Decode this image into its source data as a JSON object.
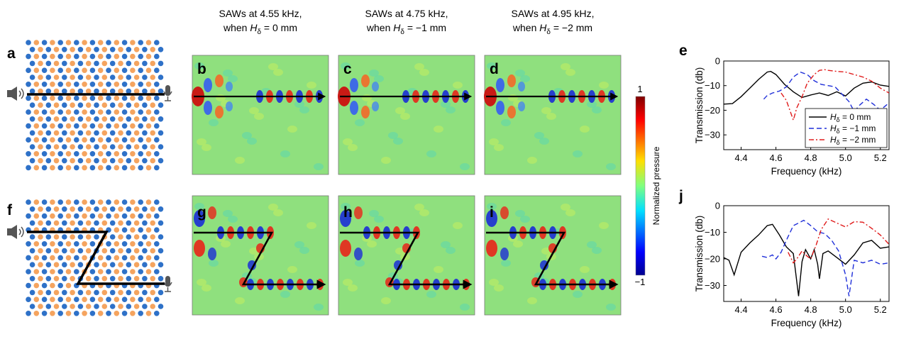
{
  "panel_labels": {
    "a": "a",
    "b": "b",
    "c": "c",
    "d": "d",
    "e": "e",
    "f": "f",
    "g": "g",
    "h": "h",
    "i": "i",
    "j": "j"
  },
  "captions": [
    {
      "line1": "SAWs at 4.55 kHz,",
      "line2_prefix": "when ",
      "H": "H",
      "sub": "δ",
      "line2_suffix": " = 0 mm"
    },
    {
      "line1": "SAWs at 4.75 kHz,",
      "line2_prefix": "when ",
      "H": "H",
      "sub": "δ",
      "line2_suffix": " = −1 mm"
    },
    {
      "line1": "SAWs at 4.95 kHz,",
      "line2_prefix": "when ",
      "H": "H",
      "sub": "δ",
      "line2_suffix": " = −2 mm"
    }
  ],
  "colorbar": {
    "max_label": "1",
    "min_label": "−1",
    "label": "Normalized pressure"
  },
  "lattice_colors": {
    "blue": "#2E71C8",
    "orange": "#F5A45F"
  },
  "chart_data": [
    {
      "type": "line",
      "panel": "e",
      "xlabel": "Frequency (kHz)",
      "ylabel": "Transmission (db)",
      "xlim": [
        4.3,
        5.25
      ],
      "ylim": [
        -36,
        0
      ],
      "xticks": [
        "4.4",
        "4.6",
        "4.8",
        "5.0",
        "5.2"
      ],
      "yticks": [
        "0",
        "−10",
        "−20",
        "−30"
      ],
      "legend_position": "bottom-right",
      "series": [
        {
          "name_prefix": "H",
          "name_sub": "δ",
          "name_suffix": " = 0 mm",
          "color": "#000000",
          "dash": "none",
          "x": [
            4.3,
            4.35,
            4.4,
            4.45,
            4.5,
            4.55,
            4.57,
            4.6,
            4.65,
            4.7,
            4.75,
            4.8,
            4.85,
            4.9,
            4.95,
            5.0,
            5.05,
            5.1,
            5.15,
            5.2,
            5.25
          ],
          "y": [
            -17.5,
            -17.3,
            -14.5,
            -11,
            -7.5,
            -4.5,
            -4.2,
            -5.5,
            -9.5,
            -12.5,
            -14.8,
            -13.8,
            -13,
            -14,
            -12.5,
            -14.2,
            -11,
            -9,
            -8.5,
            -9.8,
            -10.3
          ]
        },
        {
          "name_prefix": "H",
          "name_sub": "δ",
          "name_suffix": " = −1 mm",
          "color": "#1F2FD9",
          "dash": "7,4",
          "x": [
            4.53,
            4.55,
            4.58,
            4.62,
            4.66,
            4.7,
            4.74,
            4.78,
            4.82,
            4.86,
            4.9,
            4.94,
            4.98,
            5.02,
            5.05,
            5.08,
            5.12,
            5.16,
            5.2,
            5.25
          ],
          "y": [
            -15.5,
            -14,
            -13,
            -12.2,
            -10.5,
            -6.5,
            -4.5,
            -5.5,
            -8,
            -9.5,
            -10,
            -10.5,
            -13.5,
            -16.5,
            -20.5,
            -18,
            -15.5,
            -17.5,
            -20,
            -17
          ]
        },
        {
          "name_prefix": "H",
          "name_sub": "δ",
          "name_suffix": " = −2 mm",
          "color": "#E01B1B",
          "dash": "7,3,2,3",
          "x": [
            4.63,
            4.66,
            4.7,
            4.72,
            4.75,
            4.78,
            4.82,
            4.85,
            4.88,
            4.9,
            4.95,
            5.0,
            5.05,
            5.1,
            5.15,
            5.2,
            5.25
          ],
          "y": [
            -13,
            -16,
            -24,
            -19,
            -14.5,
            -9,
            -5.5,
            -3.8,
            -3.5,
            -3.8,
            -4.2,
            -4.5,
            -5.5,
            -6.5,
            -8.2,
            -11,
            -13
          ]
        }
      ]
    },
    {
      "type": "line",
      "panel": "j",
      "xlabel": "Frequency (kHz)",
      "ylabel": "Transmission (db)",
      "xlim": [
        4.3,
        5.25
      ],
      "ylim": [
        -36,
        0
      ],
      "xticks": [
        "4.4",
        "4.6",
        "4.8",
        "5.0",
        "5.2"
      ],
      "yticks": [
        "0",
        "−10",
        "−20",
        "−30"
      ],
      "series": [
        {
          "name": "",
          "color": "#000000",
          "dash": "none",
          "x": [
            4.3,
            4.33,
            4.36,
            4.4,
            4.45,
            4.5,
            4.55,
            4.58,
            4.62,
            4.66,
            4.7,
            4.73,
            4.75,
            4.77,
            4.8,
            4.82,
            4.84,
            4.85,
            4.87,
            4.9,
            4.95,
            5.0,
            5.05,
            5.1,
            5.15,
            5.2,
            5.25
          ],
          "y": [
            -19.5,
            -20.5,
            -26,
            -17.5,
            -14,
            -11,
            -7.5,
            -7,
            -11,
            -15.5,
            -18,
            -34,
            -21,
            -16.5,
            -20,
            -16.5,
            -22,
            -27.5,
            -18,
            -17,
            -19.5,
            -22,
            -18.5,
            -14,
            -13,
            -16,
            -15.5
          ]
        },
        {
          "name": "",
          "color": "#1F2FD9",
          "dash": "7,4",
          "x": [
            4.52,
            4.55,
            4.58,
            4.6,
            4.63,
            4.66,
            4.7,
            4.73,
            4.76,
            4.8,
            4.84,
            4.88,
            4.92,
            4.96,
            5.0,
            5.02,
            5.05,
            5.1,
            5.15,
            5.2,
            5.25
          ],
          "y": [
            -19,
            -19.5,
            -18.5,
            -20,
            -17.5,
            -13,
            -7.5,
            -6.5,
            -5.5,
            -7.5,
            -9.8,
            -10.5,
            -13,
            -17,
            -26,
            -34,
            -20.5,
            -21.5,
            -20.5,
            -22,
            -21.5
          ]
        },
        {
          "name": "",
          "color": "#E01B1B",
          "dash": "7,3,2,3",
          "x": [
            4.67,
            4.7,
            4.72,
            4.75,
            4.78,
            4.8,
            4.83,
            4.86,
            4.9,
            4.95,
            5.0,
            5.05,
            5.1,
            5.15,
            5.2,
            5.25
          ],
          "y": [
            -17.5,
            -21.5,
            -20,
            -17,
            -19,
            -20,
            -15,
            -9,
            -5,
            -6.5,
            -8,
            -6,
            -6.2,
            -8.5,
            -11,
            -14.5
          ]
        }
      ]
    }
  ]
}
